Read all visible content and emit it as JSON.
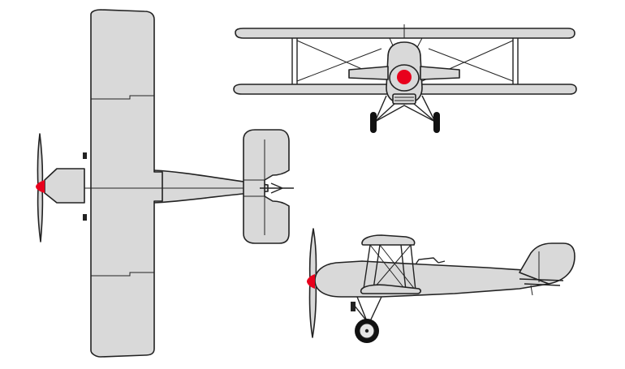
{
  "colors": {
    "background": "#ffffff",
    "airframe": "#d9d9d9",
    "outline": "#222222",
    "spinner": "#e8001c",
    "tire": "#111111"
  },
  "views": [
    {
      "id": "top",
      "icon": "biplane-top-view-icon"
    },
    {
      "id": "front",
      "icon": "biplane-front-view-icon"
    },
    {
      "id": "side",
      "icon": "biplane-side-view-icon"
    }
  ]
}
